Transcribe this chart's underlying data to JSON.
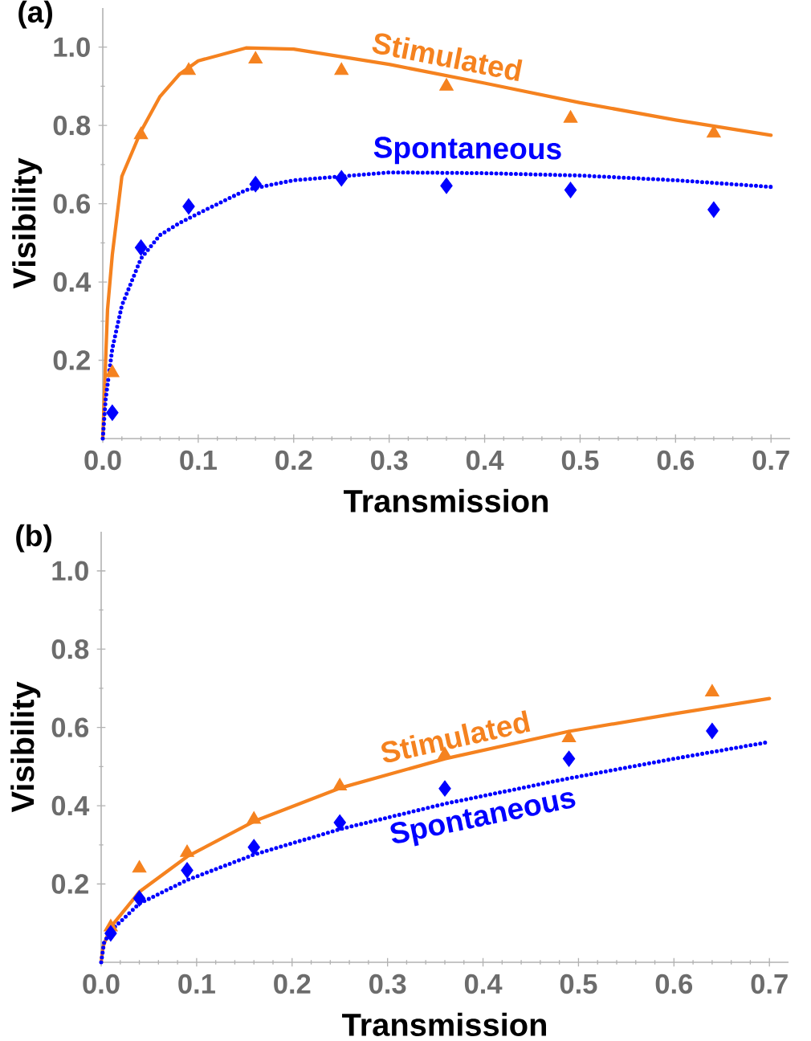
{
  "chart_data": [
    {
      "type": "scatter",
      "title": "(a)",
      "xlabel": "Transmission",
      "ylabel": "Visibility",
      "xlim": [
        0,
        0.72
      ],
      "ylim": [
        0,
        1.1
      ],
      "xticks": [
        {
          "value": 0,
          "label": "0.0"
        },
        0.1,
        0.2,
        0.3,
        0.4,
        0.5,
        0.6,
        0.7
      ],
      "yticks": [
        0.2,
        0.4,
        0.6,
        0.8,
        {
          "value": 1,
          "label": "1.0"
        }
      ],
      "series": [
        {
          "name": "Stimulated",
          "type": "line",
          "color": "#f5821f",
          "line_style": "solid",
          "marker": "none",
          "x": [
            0,
            0.003,
            0.005,
            0.01,
            0.02,
            0.04,
            0.06,
            0.08,
            0.1,
            0.15,
            0.2,
            0.3,
            0.4,
            0.5,
            0.6,
            0.7
          ],
          "values": [
            0,
            0.2,
            0.33,
            0.47,
            0.67,
            0.785,
            0.874,
            0.93,
            0.965,
            0.998,
            0.995,
            0.956,
            0.908,
            0.858,
            0.814,
            0.775
          ]
        },
        {
          "name": "Spontaneous",
          "type": "line",
          "color": "#0000ff",
          "line_style": "dotted",
          "marker": "none",
          "x": [
            0,
            0.003,
            0.01,
            0.02,
            0.04,
            0.06,
            0.08,
            0.1,
            0.15,
            0.2,
            0.3,
            0.4,
            0.5,
            0.6,
            0.7
          ],
          "values": [
            0,
            0.1,
            0.23,
            0.34,
            0.46,
            0.52,
            0.55,
            0.575,
            0.635,
            0.66,
            0.68,
            0.678,
            0.672,
            0.66,
            0.643
          ]
        },
        {
          "color": "#f5821f",
          "marker": "triangle",
          "x": [
            0.01,
            0.04,
            0.09,
            0.16,
            0.25,
            0.36,
            0.49,
            0.64
          ],
          "values": [
            0.168,
            0.776,
            0.94,
            0.969,
            0.94,
            0.9,
            0.818,
            0.78
          ]
        },
        {
          "color": "#0000ff",
          "marker": "diamond",
          "x": [
            0.01,
            0.04,
            0.09,
            0.16,
            0.25,
            0.36,
            0.49,
            0.64
          ],
          "values": [
            0.066,
            0.488,
            0.593,
            0.65,
            0.665,
            0.646,
            0.635,
            0.585
          ]
        }
      ]
    },
    {
      "type": "scatter",
      "title": "(b)",
      "xlabel": "Transmission",
      "ylabel": "Visibility",
      "xlim": [
        0,
        0.72
      ],
      "ylim": [
        0,
        1.1
      ],
      "xticks": [
        {
          "value": 0,
          "label": "0.0"
        },
        0.1,
        0.2,
        0.3,
        0.4,
        0.5,
        0.6,
        0.7
      ],
      "yticks": [
        0.2,
        0.4,
        0.6,
        0.8,
        {
          "value": 1,
          "label": "1.0"
        }
      ],
      "series": [
        {
          "name": "Stimulated",
          "type": "line",
          "color": "#f5821f",
          "line_style": "solid",
          "marker": "none",
          "x": [
            0,
            0.002,
            0.01,
            0.04,
            0.09,
            0.16,
            0.25,
            0.36,
            0.49,
            0.6,
            0.7
          ],
          "values": [
            0,
            0.04,
            0.09,
            0.18,
            0.27,
            0.36,
            0.445,
            0.52,
            0.59,
            0.635,
            0.674
          ]
        },
        {
          "name": "Spontaneous",
          "type": "line",
          "color": "#0000ff",
          "line_style": "dotted",
          "marker": "none",
          "x": [
            0,
            0.003,
            0.01,
            0.04,
            0.09,
            0.16,
            0.25,
            0.36,
            0.49,
            0.6,
            0.7
          ],
          "values": [
            0,
            0.05,
            0.08,
            0.15,
            0.21,
            0.275,
            0.34,
            0.405,
            0.47,
            0.52,
            0.563
          ]
        },
        {
          "color": "#f5821f",
          "marker": "triangle",
          "x": [
            0.01,
            0.04,
            0.09,
            0.16,
            0.25,
            0.36,
            0.49,
            0.64
          ],
          "values": [
            0.09,
            0.24,
            0.28,
            0.365,
            0.45,
            0.53,
            0.573,
            0.69
          ]
        },
        {
          "color": "#0000ff",
          "marker": "diamond",
          "x": [
            0.01,
            0.04,
            0.09,
            0.16,
            0.25,
            0.36,
            0.49,
            0.64
          ],
          "values": [
            0.074,
            0.163,
            0.235,
            0.294,
            0.357,
            0.444,
            0.52,
            0.591
          ]
        }
      ]
    }
  ]
}
